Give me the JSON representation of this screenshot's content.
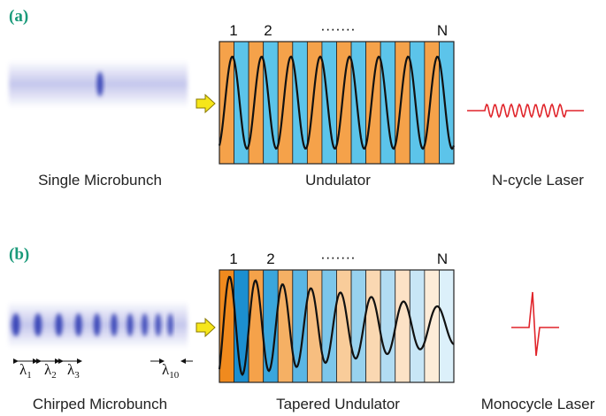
{
  "panel_a": {
    "label": "(a)",
    "undulator_marks": [
      "1",
      "2",
      "·······",
      "N"
    ],
    "captions": [
      "Single Microbunch",
      "Undulator",
      "N-cycle Laser"
    ]
  },
  "panel_b": {
    "label": "(b)",
    "undulator_marks": [
      "1",
      "2",
      "·······",
      "N"
    ],
    "wavelengths": [
      {
        "base": "λ",
        "sub": "1"
      },
      {
        "base": "λ",
        "sub": "2"
      },
      {
        "base": "λ",
        "sub": "3"
      },
      {
        "base": "λ",
        "sub": "10"
      }
    ],
    "captions": [
      "Chirped Microbunch",
      "Tapered Undulator",
      "Monocycle Laser"
    ]
  }
}
